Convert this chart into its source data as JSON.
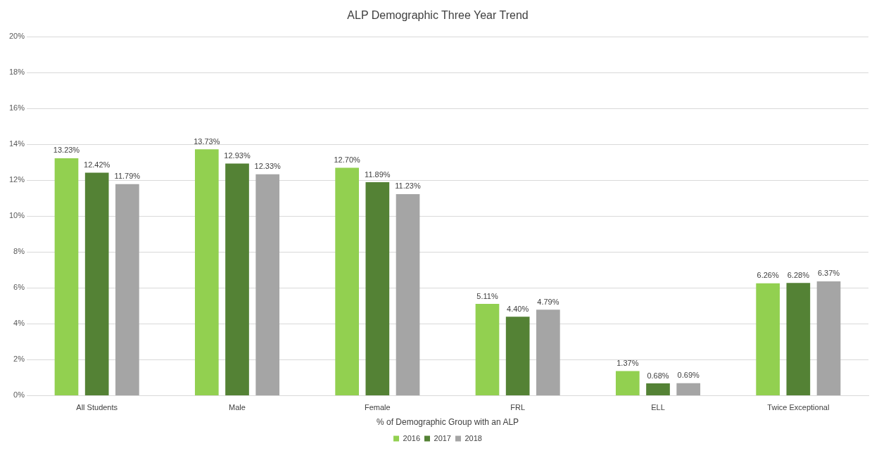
{
  "chart_data": {
    "type": "bar",
    "title": "ALP Demographic Three Year Trend",
    "xlabel": "% of Demographic Group with an ALP",
    "categories": [
      "All Students",
      "Male",
      "Female",
      "FRL",
      "ELL",
      "Twice Exceptional"
    ],
    "series": [
      {
        "name": "2016",
        "color": "#92d050",
        "values": [
          13.23,
          13.73,
          12.7,
          5.11,
          1.37,
          6.26
        ],
        "value_labels": [
          "13.23%",
          "13.73%",
          "12.70%",
          "5.11%",
          "1.37%",
          "6.26%"
        ]
      },
      {
        "name": "2017",
        "color": "#548235",
        "values": [
          12.42,
          12.93,
          11.89,
          4.4,
          0.68,
          6.28
        ],
        "value_labels": [
          "12.42%",
          "12.93%",
          "11.89%",
          "4.40%",
          "0.68%",
          "6.28%"
        ]
      },
      {
        "name": "2018",
        "color": "#a5a5a5",
        "values": [
          11.79,
          12.33,
          11.23,
          4.79,
          0.69,
          6.37
        ],
        "value_labels": [
          "11.79%",
          "12.33%",
          "11.23%",
          "4.79%",
          "0.69%",
          "6.37%"
        ]
      }
    ],
    "ylim": [
      0,
      20
    ],
    "yticks": [
      {
        "value": 0,
        "label": "0%"
      },
      {
        "value": 2,
        "label": "2%"
      },
      {
        "value": 4,
        "label": "4%"
      },
      {
        "value": 6,
        "label": "6%"
      },
      {
        "value": 8,
        "label": "8%"
      },
      {
        "value": 10,
        "label": "10%"
      },
      {
        "value": 12,
        "label": "12%"
      },
      {
        "value": 14,
        "label": "14%"
      },
      {
        "value": 16,
        "label": "16%"
      },
      {
        "value": 18,
        "label": "18%"
      },
      {
        "value": 20,
        "label": "20%"
      }
    ],
    "grid": "y",
    "legend": "bottom"
  }
}
